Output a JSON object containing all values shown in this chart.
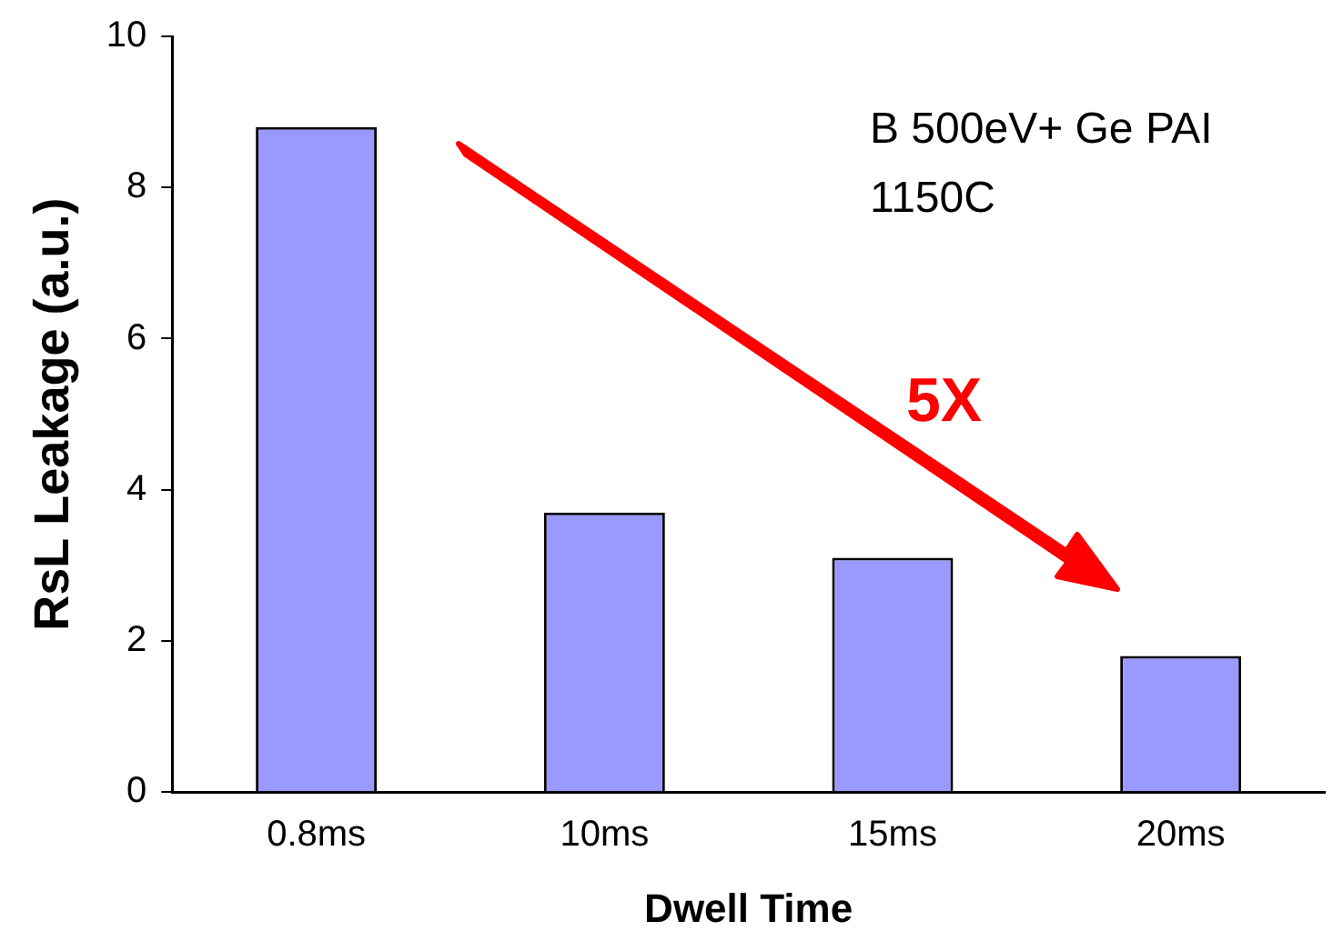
{
  "chart_data": {
    "type": "bar",
    "xlabel": "Dwell Time",
    "ylabel": "RsL Leakage (a.u.)",
    "categories": [
      "0.8ms",
      "10ms",
      "15ms",
      "20ms"
    ],
    "values": [
      8.8,
      3.7,
      3.1,
      1.8
    ],
    "color": "#9999ff",
    "ylim": [
      0,
      10
    ],
    "yticks": [
      0,
      2,
      4,
      6,
      8,
      10
    ],
    "grid": false,
    "legend": false,
    "annotations": [
      "B 500eV+ Ge PAI",
      "1150C",
      "5X"
    ]
  }
}
